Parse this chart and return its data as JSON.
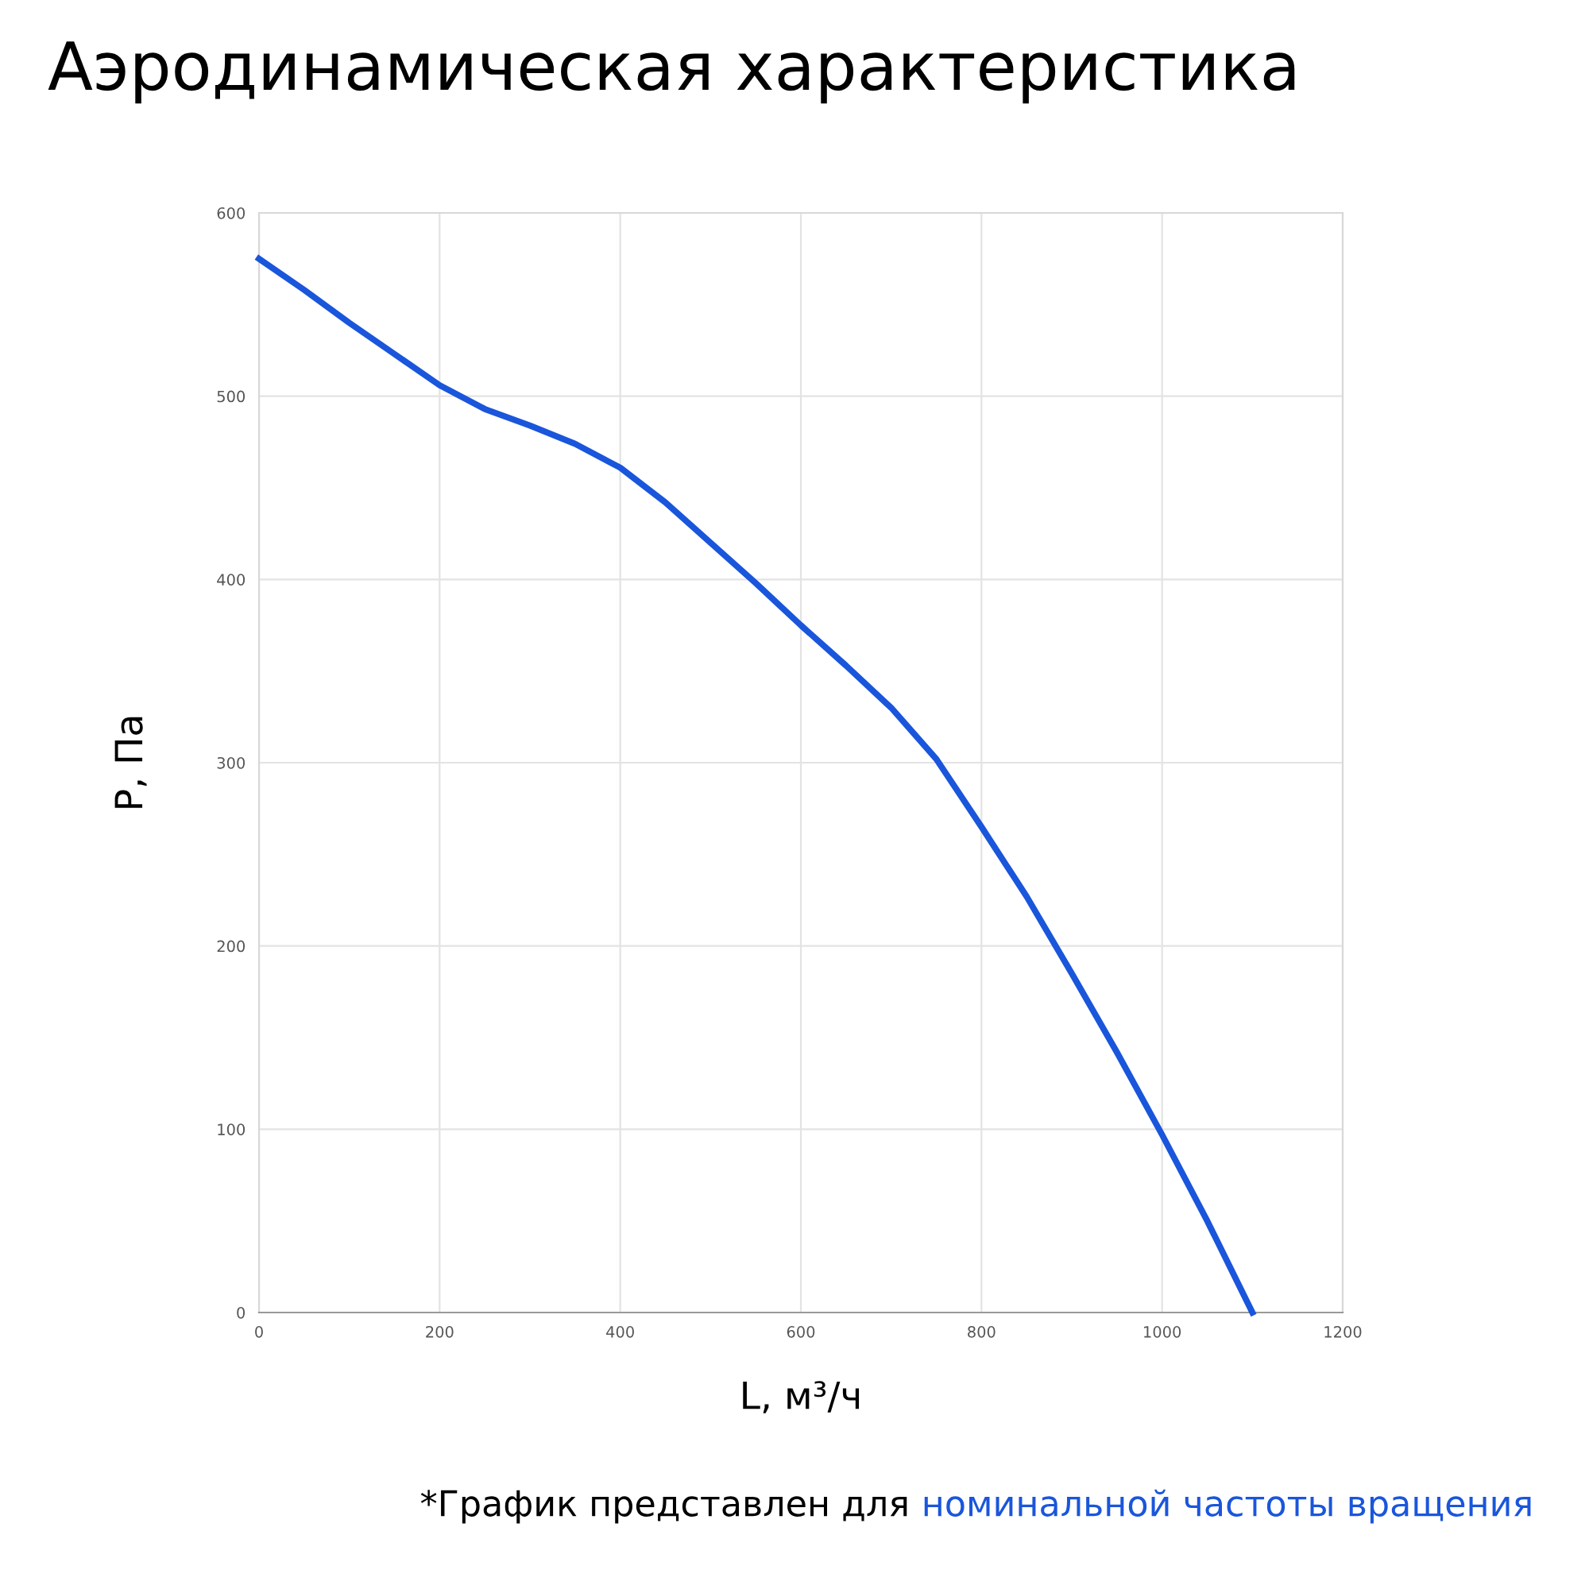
{
  "chart_data": {
    "type": "line",
    "title": "Аэродинамическая характеристика",
    "xlabel": "L, м³/ч",
    "ylabel": "P, Па",
    "x": [
      0,
      50,
      100,
      150,
      200,
      250,
      300,
      350,
      400,
      450,
      500,
      550,
      600,
      650,
      700,
      750,
      800,
      850,
      900,
      950,
      1000,
      1050,
      1100
    ],
    "series": [
      {
        "color": "#1a56db",
        "values": [
          575,
          558,
          540,
          523,
          506,
          493,
          484,
          474,
          461,
          442,
          420,
          398,
          375,
          353,
          330,
          302,
          265,
          227,
          185,
          142,
          97,
          50,
          0
        ]
      }
    ],
    "xlim": [
      0,
      1200
    ],
    "xticks": [
      0,
      200,
      400,
      600,
      800,
      1000,
      1200
    ],
    "ylim": [
      0,
      600
    ],
    "yticks": [
      0,
      100,
      200,
      300,
      400,
      500,
      600
    ],
    "grid": true,
    "legend": false,
    "marker": "none",
    "line_style": "solid",
    "annotations": [
      "*График представлен для ",
      "номинальной частоты вращения"
    ]
  }
}
